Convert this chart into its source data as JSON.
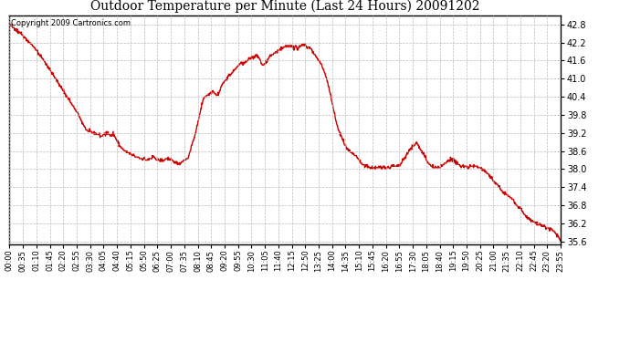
{
  "title": "Outdoor Temperature per Minute (Last 24 Hours) 20091202",
  "copyright_text": "Copyright 2009 Cartronics.com",
  "line_color": "#cc0000",
  "bg_color": "#ffffff",
  "plot_bg_color": "#ffffff",
  "grid_color": "#bbbbbb",
  "ylim": [
    35.5,
    43.1
  ],
  "yticks": [
    35.6,
    36.2,
    36.8,
    37.4,
    38.0,
    38.6,
    39.2,
    39.8,
    40.4,
    41.0,
    41.6,
    42.2,
    42.8
  ],
  "xtick_labels": [
    "00:00",
    "00:35",
    "01:10",
    "01:45",
    "02:20",
    "02:55",
    "03:30",
    "04:05",
    "04:40",
    "05:15",
    "05:50",
    "06:25",
    "07:00",
    "07:35",
    "08:10",
    "08:45",
    "09:20",
    "09:55",
    "10:30",
    "11:05",
    "11:40",
    "12:15",
    "12:50",
    "13:25",
    "14:00",
    "14:35",
    "15:10",
    "15:45",
    "16:20",
    "16:55",
    "17:30",
    "18:05",
    "18:40",
    "19:15",
    "19:50",
    "20:25",
    "21:00",
    "21:35",
    "22:10",
    "22:45",
    "23:20",
    "23:55"
  ],
  "line_width": 1.0,
  "title_fontsize": 10,
  "ytick_fontsize": 7,
  "xtick_fontsize": 6,
  "copyright_fontsize": 6
}
